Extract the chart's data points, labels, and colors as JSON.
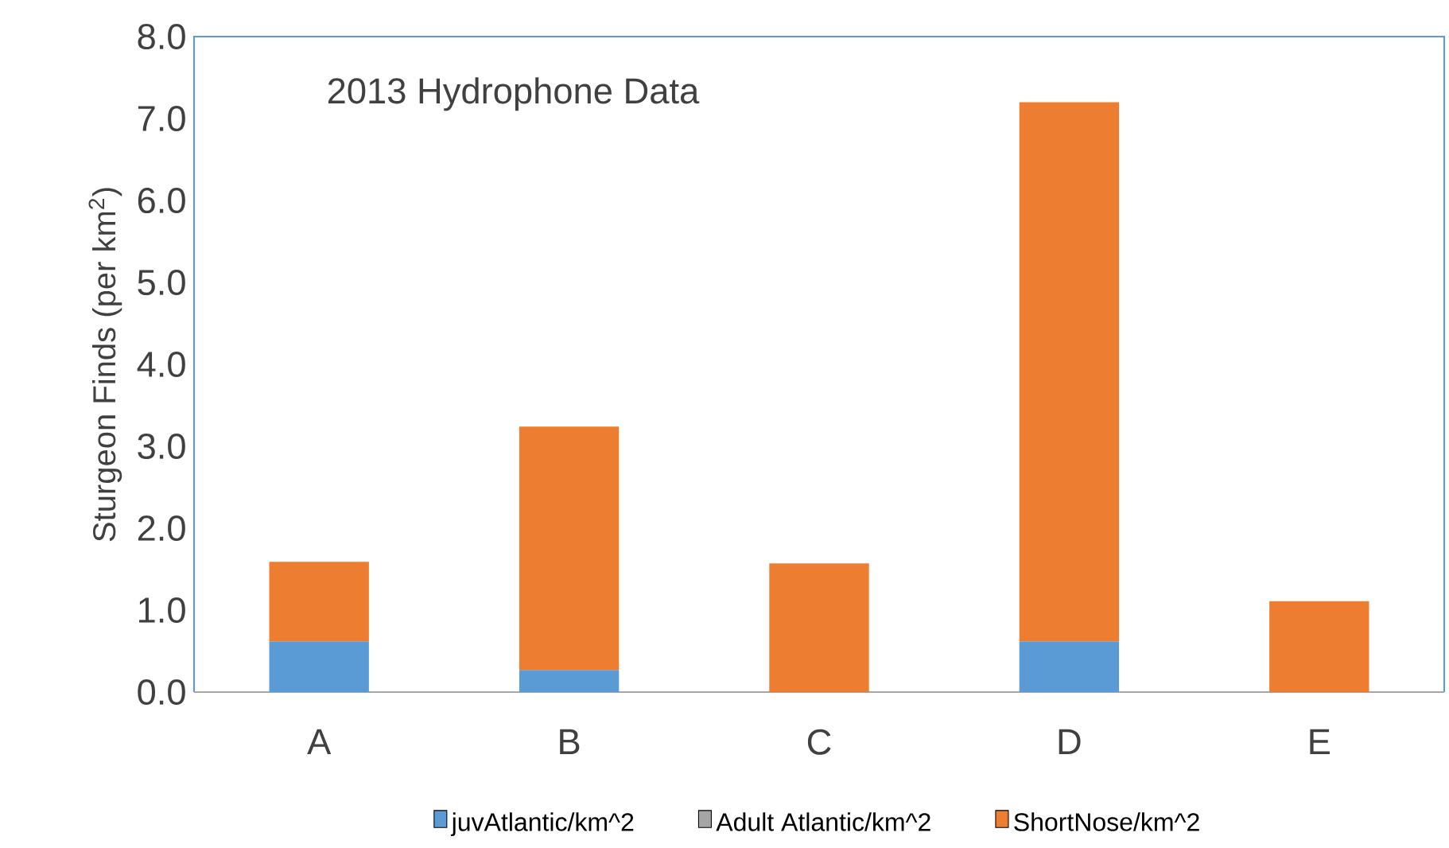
{
  "chart_data": {
    "type": "bar",
    "stacked": true,
    "title": "2013 Hydrophone Data",
    "ylabel": "Sturgeon Finds (per km$^{2}$)",
    "categories": [
      "A",
      "B",
      "C",
      "D",
      "E"
    ],
    "series": [
      {
        "name": "juvAtlantic/km^2",
        "color": "#5b9bd5",
        "values": [
          0.62,
          0.27,
          0,
          0.62,
          0
        ]
      },
      {
        "name": "Adult Atlantic/km^2",
        "color": "#a5a5a5",
        "values": [
          0,
          0,
          0,
          0,
          0
        ]
      },
      {
        "name": "ShortNose/km^2",
        "color": "#ed7d31",
        "values": [
          0.97,
          2.97,
          1.57,
          6.58,
          1.11
        ]
      }
    ],
    "ylim": [
      0,
      8
    ],
    "yticks": [
      {
        "value": 0,
        "label": "0.0"
      },
      {
        "value": 1,
        "label": "1.0"
      },
      {
        "value": 2,
        "label": "2.0"
      },
      {
        "value": 3,
        "label": "3.0"
      },
      {
        "value": 4,
        "label": "4.0"
      },
      {
        "value": 5,
        "label": "5.0"
      },
      {
        "value": 6,
        "label": "6.0"
      },
      {
        "value": 7,
        "label": "7.0"
      },
      {
        "value": 8,
        "label": "8.0"
      }
    ],
    "legend": "bottom"
  }
}
